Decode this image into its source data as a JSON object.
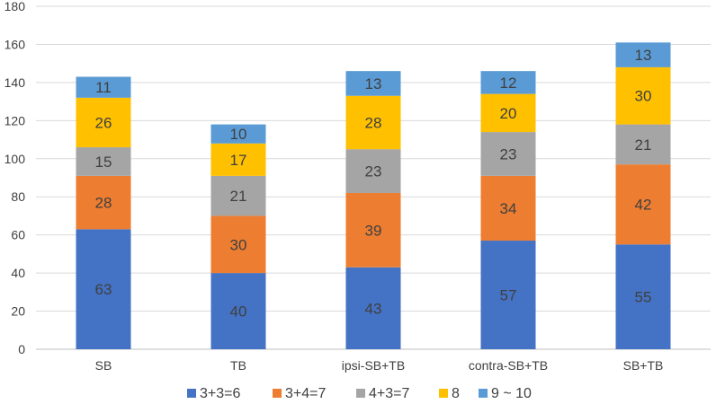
{
  "chart_data": {
    "type": "bar",
    "stacked": true,
    "title": "",
    "xlabel": "",
    "ylabel": "",
    "ylim": [
      0,
      180
    ],
    "ytick_step": 20,
    "grid": true,
    "legend_position": "bottom",
    "categories": [
      "SB",
      "TB",
      "ipsi-SB+TB",
      "contra-SB+TB",
      "SB+TB"
    ],
    "series": [
      {
        "name": "3+3=6",
        "color": "#4472c4",
        "values": [
          63,
          40,
          43,
          57,
          55
        ]
      },
      {
        "name": "3+4=7",
        "color": "#ed7d31",
        "values": [
          28,
          30,
          39,
          34,
          42
        ]
      },
      {
        "name": "4+3=7",
        "color": "#a5a5a5",
        "values": [
          15,
          21,
          23,
          23,
          21
        ]
      },
      {
        "name": "8",
        "color": "#ffc000",
        "values": [
          26,
          17,
          28,
          20,
          30
        ]
      },
      {
        "name": "9 ~ 10",
        "color": "#5b9bd5",
        "values": [
          11,
          10,
          13,
          12,
          13
        ]
      }
    ]
  }
}
